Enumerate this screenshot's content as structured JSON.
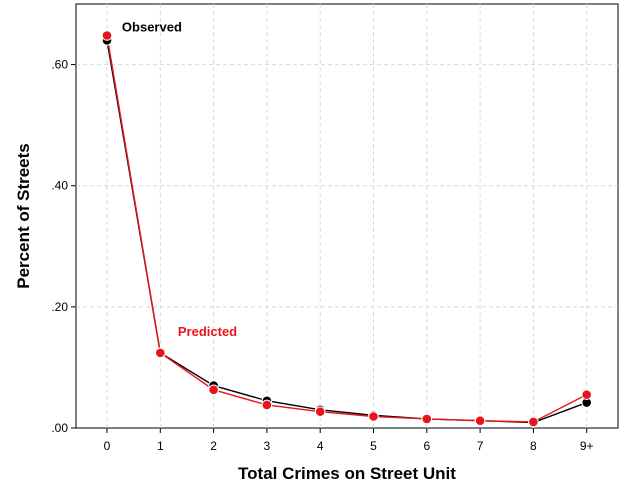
{
  "chart_data": {
    "type": "line",
    "title": "",
    "xlabel": "Total Crimes on Street Unit",
    "ylabel": "Percent of Streets",
    "categories": [
      "0",
      "1",
      "2",
      "3",
      "4",
      "5",
      "6",
      "7",
      "8",
      "9+"
    ],
    "yticks": [
      ".00",
      ".20",
      ".40",
      ".60"
    ],
    "ylim": [
      0,
      0.7
    ],
    "grid": true,
    "legend": "none",
    "series": [
      {
        "name": "Observed",
        "color": "#000000",
        "values": [
          0.64,
          0.124,
          0.07,
          0.045,
          0.03,
          0.021,
          0.015,
          0.012,
          0.009,
          0.042
        ]
      },
      {
        "name": "Predicted",
        "color": "#e8141c",
        "values": [
          0.648,
          0.124,
          0.063,
          0.038,
          0.027,
          0.019,
          0.015,
          0.012,
          0.01,
          0.055
        ]
      }
    ],
    "annotations": [
      {
        "text": "Observed",
        "color": "#000000",
        "x": 0.28,
        "y": 0.655
      },
      {
        "text": "Predicted",
        "color": "#e8141c",
        "x": 1.33,
        "y": 0.152
      }
    ]
  }
}
